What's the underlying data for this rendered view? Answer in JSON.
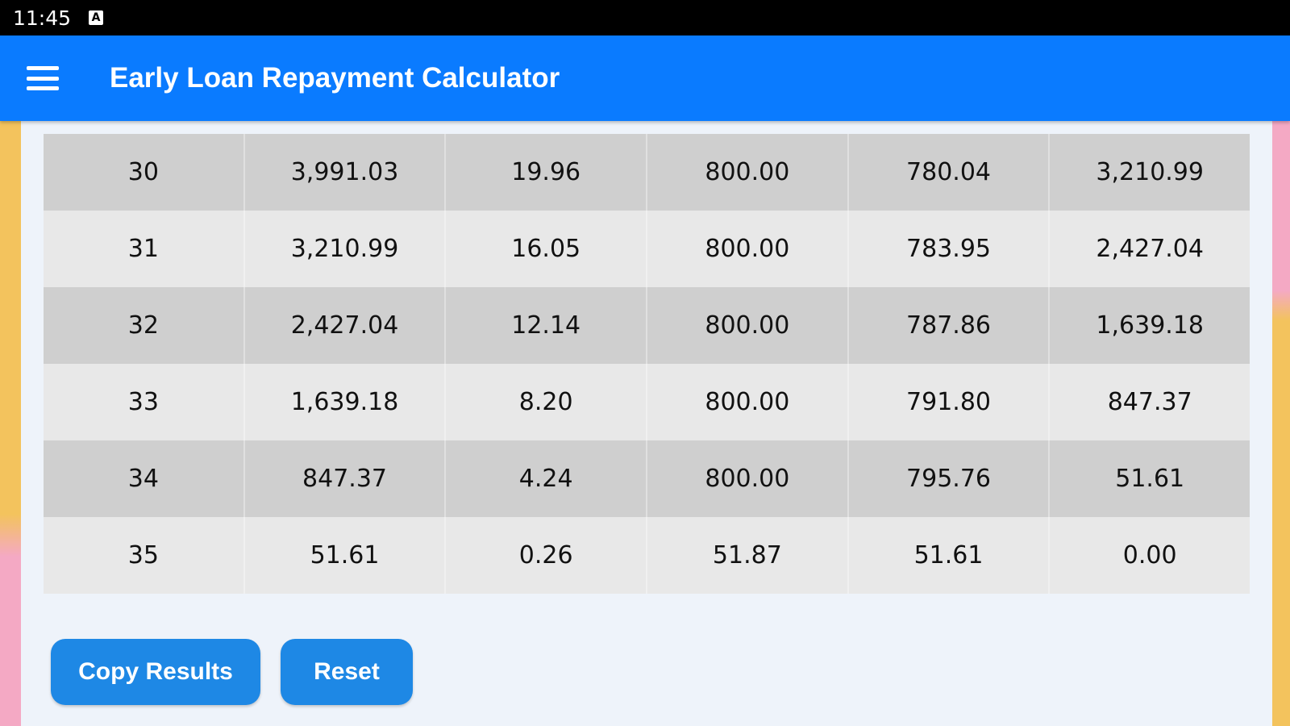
{
  "status_bar": {
    "time": "11:45",
    "notification_icon": "a-notification-icon"
  },
  "app_bar": {
    "title": "Early Loan Repayment Calculator",
    "menu_icon": "hamburger-menu-icon",
    "color": "#0a7bff"
  },
  "table": {
    "rows": [
      [
        "30",
        "3,991.03",
        "19.96",
        "800.00",
        "780.04",
        "3,210.99"
      ],
      [
        "31",
        "3,210.99",
        "16.05",
        "800.00",
        "783.95",
        "2,427.04"
      ],
      [
        "32",
        "2,427.04",
        "12.14",
        "800.00",
        "787.86",
        "1,639.18"
      ],
      [
        "33",
        "1,639.18",
        "8.20",
        "800.00",
        "791.80",
        "847.37"
      ],
      [
        "34",
        "847.37",
        "4.24",
        "800.00",
        "795.76",
        "51.61"
      ],
      [
        "35",
        "51.61",
        "0.26",
        "51.87",
        "51.61",
        "0.00"
      ]
    ]
  },
  "buttons": {
    "copy_label": "Copy Results",
    "reset_label": "Reset",
    "color": "#1e88e5"
  }
}
